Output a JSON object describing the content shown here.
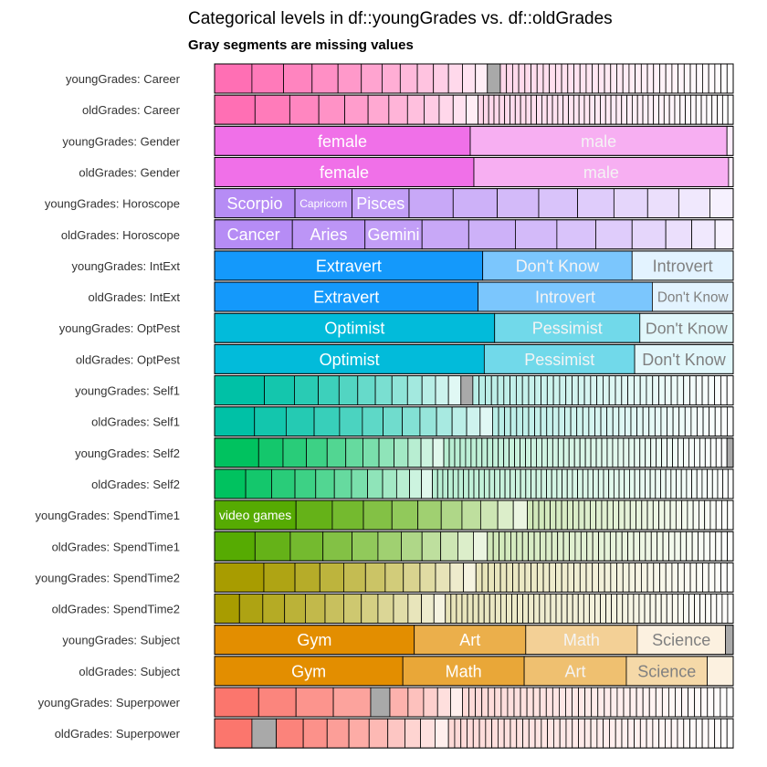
{
  "chart_data": {
    "type": "bar",
    "orientation": "horizontal",
    "stacked": "proportional",
    "title": "Categorical levels in df::youngGrades vs. df::oldGrades",
    "subtitle": "Gray segments are missing values",
    "missing_color": "#a9a9a9",
    "rows": [
      {
        "label": "youngGrades: Career",
        "color": "#ff6fb4",
        "segments": [
          {
            "kind": "L",
            "v": 0.072
          },
          {
            "kind": "L",
            "v": 0.061
          },
          {
            "kind": "L",
            "v": 0.055
          },
          {
            "kind": "L",
            "v": 0.05
          },
          {
            "kind": "L",
            "v": 0.045
          },
          {
            "kind": "L",
            "v": 0.04
          },
          {
            "kind": "L",
            "v": 0.035
          },
          {
            "kind": "L",
            "v": 0.033
          },
          {
            "kind": "L",
            "v": 0.031
          },
          {
            "kind": "L",
            "v": 0.029
          },
          {
            "kind": "L",
            "v": 0.027
          },
          {
            "kind": "L",
            "v": 0.025
          },
          {
            "kind": "L",
            "v": 0.023
          },
          {
            "kind": "M",
            "v": 0.025
          },
          {
            "kind": "R",
            "v": 0.449,
            "n": 38
          }
        ]
      },
      {
        "label": "oldGrades: Career",
        "color": "#ff6fb4",
        "segments": [
          {
            "kind": "L",
            "v": 0.078
          },
          {
            "kind": "L",
            "v": 0.067
          },
          {
            "kind": "L",
            "v": 0.056
          },
          {
            "kind": "L",
            "v": 0.05
          },
          {
            "kind": "L",
            "v": 0.045
          },
          {
            "kind": "L",
            "v": 0.04
          },
          {
            "kind": "L",
            "v": 0.036
          },
          {
            "kind": "L",
            "v": 0.032
          },
          {
            "kind": "L",
            "v": 0.029
          },
          {
            "kind": "L",
            "v": 0.027
          },
          {
            "kind": "L",
            "v": 0.025
          },
          {
            "kind": "L",
            "v": 0.023
          },
          {
            "kind": "R",
            "v": 0.492,
            "n": 48
          }
        ]
      },
      {
        "label": "youngGrades: Gender",
        "color": "#f070e8",
        "segments": [
          {
            "kind": "L",
            "v": 0.493,
            "text": "female"
          },
          {
            "kind": "L",
            "v": 0.495,
            "text": "male"
          },
          {
            "kind": "L",
            "v": 0.012
          }
        ]
      },
      {
        "label": "oldGrades: Gender",
        "color": "#f070e8",
        "segments": [
          {
            "kind": "L",
            "v": 0.5,
            "text": "female"
          },
          {
            "kind": "L",
            "v": 0.491,
            "text": "male"
          },
          {
            "kind": "L",
            "v": 0.009
          }
        ]
      },
      {
        "label": "youngGrades: Horoscope",
        "color": "#b68cf5",
        "segments": [
          {
            "kind": "L",
            "v": 0.155,
            "text": "Scorpio"
          },
          {
            "kind": "L",
            "v": 0.11,
            "text": "Capricorn"
          },
          {
            "kind": "L",
            "v": 0.11,
            "text": "Pisces"
          },
          {
            "kind": "L",
            "v": 0.085
          },
          {
            "kind": "L",
            "v": 0.085
          },
          {
            "kind": "L",
            "v": 0.08
          },
          {
            "kind": "L",
            "v": 0.075
          },
          {
            "kind": "L",
            "v": 0.07
          },
          {
            "kind": "L",
            "v": 0.065
          },
          {
            "kind": "L",
            "v": 0.06
          },
          {
            "kind": "L",
            "v": 0.06
          },
          {
            "kind": "L",
            "v": 0.045
          }
        ]
      },
      {
        "label": "oldGrades: Horoscope",
        "color": "#b68cf5",
        "segments": [
          {
            "kind": "L",
            "v": 0.15,
            "text": "Cancer"
          },
          {
            "kind": "L",
            "v": 0.14,
            "text": "Aries"
          },
          {
            "kind": "L",
            "v": 0.11,
            "text": "Gemini"
          },
          {
            "kind": "L",
            "v": 0.09
          },
          {
            "kind": "L",
            "v": 0.09
          },
          {
            "kind": "L",
            "v": 0.08
          },
          {
            "kind": "L",
            "v": 0.075
          },
          {
            "kind": "L",
            "v": 0.07
          },
          {
            "kind": "L",
            "v": 0.065
          },
          {
            "kind": "L",
            "v": 0.05
          },
          {
            "kind": "L",
            "v": 0.045
          },
          {
            "kind": "L",
            "v": 0.035
          }
        ]
      },
      {
        "label": "youngGrades: IntExt",
        "color": "#1499fb",
        "segments": [
          {
            "kind": "L",
            "v": 0.517,
            "text": "Extravert"
          },
          {
            "kind": "L",
            "v": 0.288,
            "text": "Don't Know"
          },
          {
            "kind": "L",
            "v": 0.195,
            "text": "Introvert"
          }
        ]
      },
      {
        "label": "oldGrades: IntExt",
        "color": "#1499fb",
        "segments": [
          {
            "kind": "L",
            "v": 0.508,
            "text": "Extravert"
          },
          {
            "kind": "L",
            "v": 0.336,
            "text": "Introvert"
          },
          {
            "kind": "L",
            "v": 0.156,
            "text": "Don't Know"
          }
        ]
      },
      {
        "label": "youngGrades: OptPest",
        "color": "#02bbda",
        "segments": [
          {
            "kind": "L",
            "v": 0.54,
            "text": "Optimist"
          },
          {
            "kind": "L",
            "v": 0.28,
            "text": "Pessimist"
          },
          {
            "kind": "L",
            "v": 0.18,
            "text": "Don't Know"
          }
        ]
      },
      {
        "label": "oldGrades: OptPest",
        "color": "#02bbda",
        "segments": [
          {
            "kind": "L",
            "v": 0.52,
            "text": "Optimist"
          },
          {
            "kind": "L",
            "v": 0.29,
            "text": "Pessimist"
          },
          {
            "kind": "L",
            "v": 0.19,
            "text": "Don't Know"
          }
        ]
      },
      {
        "label": "youngGrades: Self1",
        "color": "#00c1a6",
        "segments": [
          {
            "kind": "L",
            "v": 0.096
          },
          {
            "kind": "L",
            "v": 0.058
          },
          {
            "kind": "L",
            "v": 0.046
          },
          {
            "kind": "L",
            "v": 0.04
          },
          {
            "kind": "L",
            "v": 0.036
          },
          {
            "kind": "L",
            "v": 0.034
          },
          {
            "kind": "L",
            "v": 0.032
          },
          {
            "kind": "L",
            "v": 0.03
          },
          {
            "kind": "L",
            "v": 0.028
          },
          {
            "kind": "L",
            "v": 0.026
          },
          {
            "kind": "L",
            "v": 0.025
          },
          {
            "kind": "L",
            "v": 0.024
          },
          {
            "kind": "M",
            "v": 0.023
          },
          {
            "kind": "R",
            "v": 0.502,
            "n": 42
          }
        ]
      },
      {
        "label": "oldGrades: Self1",
        "color": "#00c1a6",
        "segments": [
          {
            "kind": "L",
            "v": 0.077
          },
          {
            "kind": "L",
            "v": 0.061
          },
          {
            "kind": "L",
            "v": 0.054
          },
          {
            "kind": "L",
            "v": 0.049
          },
          {
            "kind": "L",
            "v": 0.044
          },
          {
            "kind": "L",
            "v": 0.04
          },
          {
            "kind": "L",
            "v": 0.037
          },
          {
            "kind": "L",
            "v": 0.034
          },
          {
            "kind": "L",
            "v": 0.032
          },
          {
            "kind": "L",
            "v": 0.03
          },
          {
            "kind": "L",
            "v": 0.028
          },
          {
            "kind": "L",
            "v": 0.026
          },
          {
            "kind": "L",
            "v": 0.024
          },
          {
            "kind": "R",
            "v": 0.464,
            "n": 40
          }
        ]
      },
      {
        "label": "youngGrades: Self2",
        "color": "#00c25f",
        "segments": [
          {
            "kind": "L",
            "v": 0.085
          },
          {
            "kind": "L",
            "v": 0.047
          },
          {
            "kind": "L",
            "v": 0.045
          },
          {
            "kind": "L",
            "v": 0.04
          },
          {
            "kind": "L",
            "v": 0.036
          },
          {
            "kind": "L",
            "v": 0.033
          },
          {
            "kind": "L",
            "v": 0.031
          },
          {
            "kind": "L",
            "v": 0.029
          },
          {
            "kind": "L",
            "v": 0.027
          },
          {
            "kind": "L",
            "v": 0.025
          },
          {
            "kind": "L",
            "v": 0.023
          },
          {
            "kind": "L",
            "v": 0.021
          },
          {
            "kind": "R",
            "v": 0.546,
            "n": 52
          },
          {
            "kind": "M",
            "v": 0.012
          }
        ]
      },
      {
        "label": "oldGrades: Self2",
        "color": "#00c25f",
        "segments": [
          {
            "kind": "L",
            "v": 0.06
          },
          {
            "kind": "L",
            "v": 0.05
          },
          {
            "kind": "L",
            "v": 0.045
          },
          {
            "kind": "L",
            "v": 0.04
          },
          {
            "kind": "L",
            "v": 0.036
          },
          {
            "kind": "L",
            "v": 0.033
          },
          {
            "kind": "L",
            "v": 0.031
          },
          {
            "kind": "L",
            "v": 0.029
          },
          {
            "kind": "L",
            "v": 0.027
          },
          {
            "kind": "L",
            "v": 0.025
          },
          {
            "kind": "L",
            "v": 0.023
          },
          {
            "kind": "L",
            "v": 0.021
          },
          {
            "kind": "R",
            "v": 0.58,
            "n": 58
          }
        ]
      },
      {
        "label": "youngGrades: SpendTime1",
        "color": "#56ab02",
        "segments": [
          {
            "kind": "L",
            "v": 0.157,
            "text": "video games"
          },
          {
            "kind": "L",
            "v": 0.07
          },
          {
            "kind": "L",
            "v": 0.06
          },
          {
            "kind": "L",
            "v": 0.055
          },
          {
            "kind": "L",
            "v": 0.05
          },
          {
            "kind": "L",
            "v": 0.045
          },
          {
            "kind": "L",
            "v": 0.04
          },
          {
            "kind": "L",
            "v": 0.036
          },
          {
            "kind": "L",
            "v": 0.033
          },
          {
            "kind": "L",
            "v": 0.03
          },
          {
            "kind": "L",
            "v": 0.027
          },
          {
            "kind": "R",
            "v": 0.397,
            "n": 36
          }
        ]
      },
      {
        "label": "oldGrades: SpendTime1",
        "color": "#56ab02",
        "segments": [
          {
            "kind": "L",
            "v": 0.078
          },
          {
            "kind": "L",
            "v": 0.068
          },
          {
            "kind": "L",
            "v": 0.063
          },
          {
            "kind": "L",
            "v": 0.056
          },
          {
            "kind": "L",
            "v": 0.05
          },
          {
            "kind": "L",
            "v": 0.045
          },
          {
            "kind": "L",
            "v": 0.04
          },
          {
            "kind": "L",
            "v": 0.036
          },
          {
            "kind": "L",
            "v": 0.033
          },
          {
            "kind": "L",
            "v": 0.03
          },
          {
            "kind": "L",
            "v": 0.027
          },
          {
            "kind": "R",
            "v": 0.474,
            "n": 42
          }
        ]
      },
      {
        "label": "youngGrades: SpendTime2",
        "color": "#a89c00",
        "segments": [
          {
            "kind": "L",
            "v": 0.095
          },
          {
            "kind": "L",
            "v": 0.06
          },
          {
            "kind": "L",
            "v": 0.048
          },
          {
            "kind": "L",
            "v": 0.046
          },
          {
            "kind": "L",
            "v": 0.042
          },
          {
            "kind": "L",
            "v": 0.038
          },
          {
            "kind": "L",
            "v": 0.035
          },
          {
            "kind": "L",
            "v": 0.032
          },
          {
            "kind": "L",
            "v": 0.03
          },
          {
            "kind": "L",
            "v": 0.028
          },
          {
            "kind": "L",
            "v": 0.026
          },
          {
            "kind": "L",
            "v": 0.024
          },
          {
            "kind": "R",
            "v": 0.496,
            "n": 42
          }
        ]
      },
      {
        "label": "oldGrades: SpendTime2",
        "color": "#a89c00",
        "segments": [
          {
            "kind": "L",
            "v": 0.048
          },
          {
            "kind": "L",
            "v": 0.045
          },
          {
            "kind": "L",
            "v": 0.042
          },
          {
            "kind": "L",
            "v": 0.04
          },
          {
            "kind": "L",
            "v": 0.038
          },
          {
            "kind": "L",
            "v": 0.036
          },
          {
            "kind": "L",
            "v": 0.034
          },
          {
            "kind": "L",
            "v": 0.032
          },
          {
            "kind": "L",
            "v": 0.03
          },
          {
            "kind": "L",
            "v": 0.028
          },
          {
            "kind": "L",
            "v": 0.026
          },
          {
            "kind": "L",
            "v": 0.024
          },
          {
            "kind": "L",
            "v": 0.022
          },
          {
            "kind": "R",
            "v": 0.555,
            "n": 52
          }
        ]
      },
      {
        "label": "youngGrades: Subject",
        "color": "#e38e00",
        "segments": [
          {
            "kind": "L",
            "v": 0.385,
            "text": "Gym"
          },
          {
            "kind": "L",
            "v": 0.215,
            "text": "Art"
          },
          {
            "kind": "L",
            "v": 0.215,
            "text": "Math"
          },
          {
            "kind": "L",
            "v": 0.17,
            "text": "Science"
          },
          {
            "kind": "M",
            "v": 0.015
          }
        ]
      },
      {
        "label": "oldGrades: Subject",
        "color": "#e38e00",
        "segments": [
          {
            "kind": "L",
            "v": 0.363,
            "text": "Gym"
          },
          {
            "kind": "L",
            "v": 0.234,
            "text": "Math"
          },
          {
            "kind": "L",
            "v": 0.197,
            "text": "Art"
          },
          {
            "kind": "L",
            "v": 0.156,
            "text": "Science"
          },
          {
            "kind": "L",
            "v": 0.05
          }
        ]
      },
      {
        "label": "youngGrades: Superpower",
        "color": "#fb766d",
        "segments": [
          {
            "kind": "L",
            "v": 0.085
          },
          {
            "kind": "L",
            "v": 0.072
          },
          {
            "kind": "L",
            "v": 0.072
          },
          {
            "kind": "L",
            "v": 0.072
          },
          {
            "kind": "M",
            "v": 0.037
          },
          {
            "kind": "L",
            "v": 0.035
          },
          {
            "kind": "L",
            "v": 0.03
          },
          {
            "kind": "L",
            "v": 0.027
          },
          {
            "kind": "L",
            "v": 0.025
          },
          {
            "kind": "L",
            "v": 0.023
          },
          {
            "kind": "R",
            "v": 0.522,
            "n": 42
          }
        ]
      },
      {
        "label": "oldGrades: Superpower",
        "color": "#fb766d",
        "segments": [
          {
            "kind": "L",
            "v": 0.072
          },
          {
            "kind": "M",
            "v": 0.047
          },
          {
            "kind": "L",
            "v": 0.052
          },
          {
            "kind": "L",
            "v": 0.046
          },
          {
            "kind": "L",
            "v": 0.042
          },
          {
            "kind": "L",
            "v": 0.039
          },
          {
            "kind": "L",
            "v": 0.036
          },
          {
            "kind": "L",
            "v": 0.033
          },
          {
            "kind": "L",
            "v": 0.03
          },
          {
            "kind": "L",
            "v": 0.028
          },
          {
            "kind": "L",
            "v": 0.026
          },
          {
            "kind": "R",
            "v": 0.549,
            "n": 46
          }
        ]
      }
    ]
  }
}
